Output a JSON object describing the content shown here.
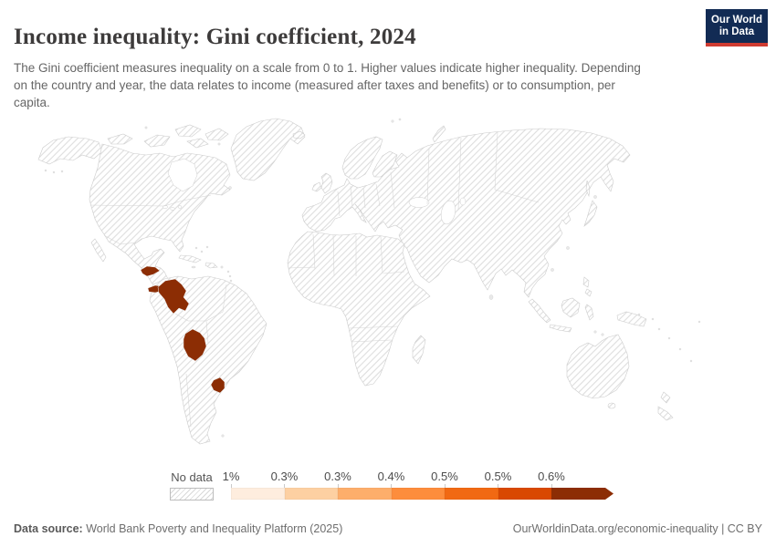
{
  "header": {
    "title": "Income inequality: Gini coefficient, 2024",
    "subtitle": "The Gini coefficient measures inequality on a scale from 0 to 1. Higher values indicate higher inequality. Depending on the country and year, the data relates to income (measured after taxes and benefits) or to consumption, per capita.",
    "logo": {
      "line1": "Our World",
      "line2": "in Data",
      "bg_color": "#122b54",
      "accent_color": "#cf3b31"
    }
  },
  "legend": {
    "no_data_label": "No data",
    "bins": [
      {
        "label": "1%",
        "color": "#feedde"
      },
      {
        "label": "0.3%",
        "color": "#fdd0a2"
      },
      {
        "label": "0.3%",
        "color": "#fdae6b"
      },
      {
        "label": "0.4%",
        "color": "#fd8d3c"
      },
      {
        "label": "0.5%",
        "color": "#f16913"
      },
      {
        "label": "0.5%",
        "color": "#d94801"
      },
      {
        "label": "0.6%",
        "color": "#8c2d04"
      }
    ]
  },
  "map": {
    "highlight_color": "#8c2d04",
    "highlighted_countries": [
      "Honduras",
      "Panama",
      "Colombia",
      "Bolivia",
      "Uruguay"
    ]
  },
  "footer": {
    "source_label": "Data source:",
    "source_value": " World Bank Poverty and Inequality Platform (2025)",
    "attribution": "OurWorldinData.org/economic-inequality | CC BY"
  },
  "chart_data": {
    "type": "choropleth",
    "title": "Income inequality: Gini coefficient, 2024",
    "legend_tick_labels": [
      "1%",
      "0.3%",
      "0.3%",
      "0.4%",
      "0.5%",
      "0.5%",
      "0.6%"
    ],
    "palette": [
      "#feedde",
      "#fdd0a2",
      "#fdae6b",
      "#fd8d3c",
      "#f16913",
      "#d94801",
      "#8c2d04"
    ],
    "no_data_style": "hatched",
    "shaded_entities": [
      {
        "entity": "Honduras",
        "fill": "#8c2d04"
      },
      {
        "entity": "Panama",
        "fill": "#8c2d04"
      },
      {
        "entity": "Colombia",
        "fill": "#8c2d04"
      },
      {
        "entity": "Bolivia",
        "fill": "#8c2d04"
      },
      {
        "entity": "Uruguay",
        "fill": "#8c2d04"
      }
    ],
    "all_other_entities": "No data"
  }
}
